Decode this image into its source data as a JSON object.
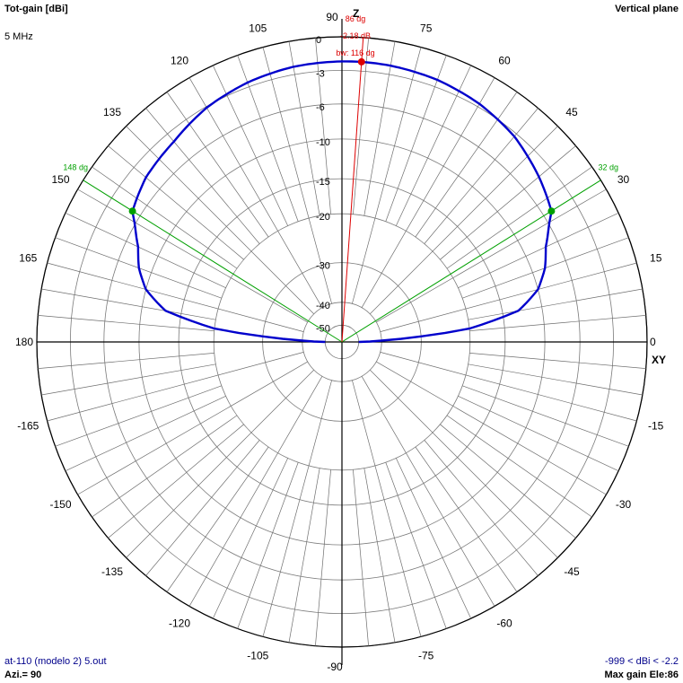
{
  "header": {
    "quantity": "Tot-gain [dBi]",
    "plane": "Vertical plane",
    "frequency": "5 MHz"
  },
  "footer": {
    "file": "at-110 (modelo 2) 5.out",
    "azimuth": "Azi.= 90",
    "range": "-999 < dBi < -2.2",
    "max_gain": "Max gain Ele:86"
  },
  "colors": {
    "pattern": "#0000cc",
    "grid": "#000000",
    "max_marker": "#dd0000",
    "beamwidth_marker": "#00a000"
  },
  "chart_data": {
    "type": "polar",
    "angle_unit": "deg",
    "angle_labels": [
      {
        "angle": 0,
        "text": "0"
      },
      {
        "angle": 15,
        "text": "15"
      },
      {
        "angle": 30,
        "text": "30"
      },
      {
        "angle": 45,
        "text": "45"
      },
      {
        "angle": 60,
        "text": "60"
      },
      {
        "angle": 75,
        "text": "75"
      },
      {
        "angle": 90,
        "text": "90"
      },
      {
        "angle": 105,
        "text": "105"
      },
      {
        "angle": 120,
        "text": "120"
      },
      {
        "angle": 135,
        "text": "135"
      },
      {
        "angle": 150,
        "text": "150"
      },
      {
        "angle": 165,
        "text": "165"
      },
      {
        "angle": 180,
        "text": "180"
      },
      {
        "angle": -165,
        "text": "-165"
      },
      {
        "angle": -150,
        "text": "-150"
      },
      {
        "angle": -135,
        "text": "-135"
      },
      {
        "angle": -120,
        "text": "-120"
      },
      {
        "angle": -105,
        "text": "-105"
      },
      {
        "angle": -90,
        "text": "-90"
      },
      {
        "angle": -75,
        "text": "-75"
      },
      {
        "angle": -60,
        "text": "-60"
      },
      {
        "angle": -45,
        "text": "-45"
      },
      {
        "angle": -30,
        "text": "-30"
      },
      {
        "angle": -15,
        "text": "-15"
      }
    ],
    "radial_labels": [
      "0",
      "-3",
      "-6",
      "-10",
      "-15",
      "-20",
      "-30",
      "-40",
      "-50"
    ],
    "radial_levels_db": [
      0,
      -3,
      -6,
      -10,
      -15,
      -20,
      -30,
      -40,
      -50
    ],
    "axis_labels": {
      "z": "Z",
      "xy": "XY"
    },
    "series": [
      {
        "theta_deg": [
          0,
          2,
          4,
          6,
          10,
          15,
          20,
          25,
          32,
          40,
          50,
          60,
          70,
          80,
          86,
          90,
          100,
          110,
          120,
          130,
          140,
          148,
          155,
          160,
          165,
          170,
          174,
          176,
          178,
          180
        ],
        "gain_db": [
          -50,
          -40,
          -30,
          -20,
          -13,
          -10,
          -8.5,
          -7.5,
          -5.2,
          -4.3,
          -3.3,
          -2.7,
          -2.35,
          -2.2,
          -2.18,
          -2.2,
          -2.3,
          -2.6,
          -3.1,
          -3.9,
          -4.4,
          -5.2,
          -7.5,
          -8.5,
          -10,
          -13,
          -20,
          -30,
          -40,
          -50
        ]
      }
    ],
    "max_marker": {
      "angle": 86,
      "gain_db": -2.18,
      "labels": [
        "86 dg",
        "-2.18 dB",
        "bw: 116 dg"
      ]
    },
    "beamwidth_markers": [
      {
        "angle": 32,
        "gain_db": -5.2,
        "label": "32 dg"
      },
      {
        "angle": 148,
        "gain_db": -5.2,
        "label": "148 dg"
      }
    ]
  }
}
